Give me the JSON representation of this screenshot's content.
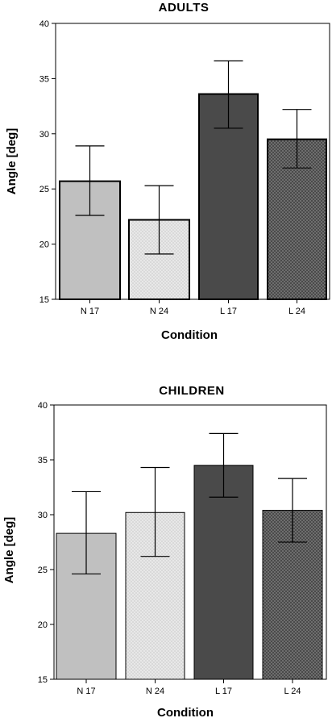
{
  "chart_data": [
    {
      "type": "bar",
      "title": "ADULTS",
      "xlabel": "Condition",
      "ylabel": "Angle [deg]",
      "ylim": [
        15,
        40
      ],
      "yticks": [
        15,
        20,
        25,
        30,
        35,
        40
      ],
      "categories": [
        "N 17",
        "N 24",
        "L 17",
        "L 24"
      ],
      "values": [
        25.7,
        22.2,
        33.6,
        29.5
      ],
      "error_low": [
        22.6,
        19.1,
        30.5,
        26.9
      ],
      "error_high": [
        28.9,
        25.3,
        36.6,
        32.2
      ],
      "grid": false,
      "colors": [
        "#c0c0c0",
        "#d8d8d8",
        "#4a4a4a",
        "#4a4a4a"
      ],
      "patterns": [
        "solid",
        "dots-light",
        "solid",
        "dots-dark"
      ]
    },
    {
      "type": "bar",
      "title": "CHILDREN",
      "xlabel": "Condition",
      "ylabel": "Angle [deg]",
      "ylim": [
        15,
        40
      ],
      "yticks": [
        15,
        20,
        25,
        30,
        35,
        40
      ],
      "categories": [
        "N 17",
        "N 24",
        "L 17",
        "L 24"
      ],
      "values": [
        28.3,
        30.2,
        34.5,
        30.4
      ],
      "error_low": [
        24.6,
        26.2,
        31.6,
        27.5
      ],
      "error_high": [
        32.1,
        34.3,
        37.4,
        33.3
      ],
      "grid": false,
      "colors": [
        "#c0c0c0",
        "#d8d8d8",
        "#4a4a4a",
        "#4a4a4a"
      ],
      "patterns": [
        "solid",
        "dots-light",
        "solid",
        "dots-dark"
      ]
    }
  ]
}
